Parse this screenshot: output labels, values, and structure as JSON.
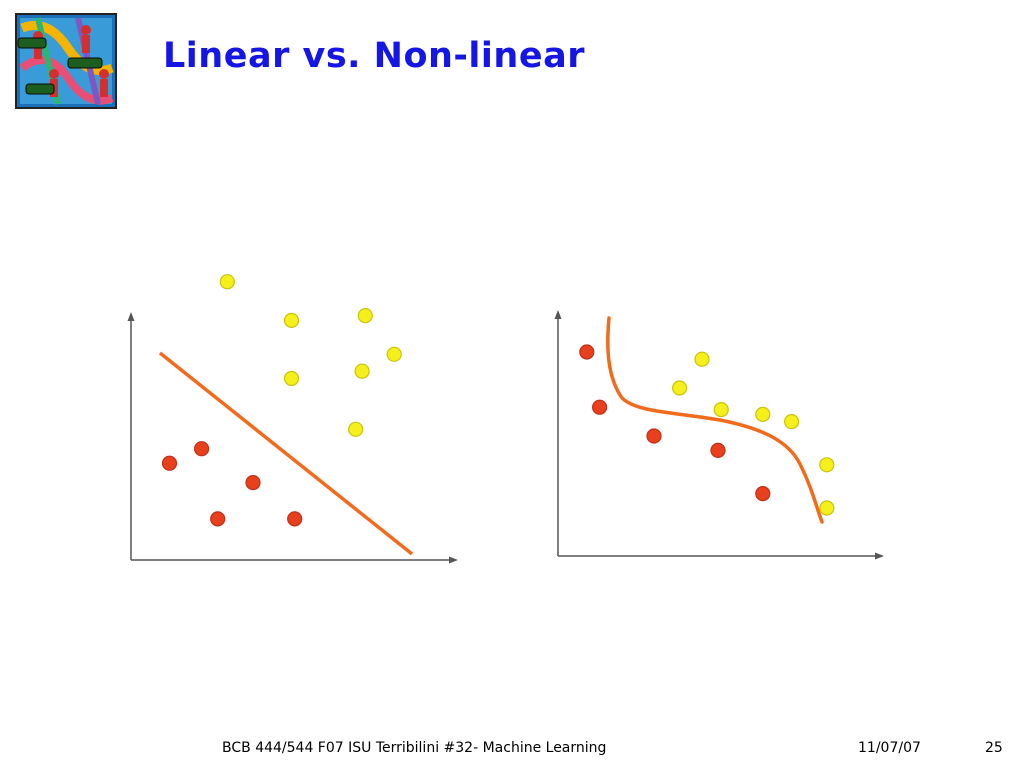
{
  "slide": {
    "title": "Linear vs. Non-linear",
    "logo_icon": "dna-people-clipart-icon",
    "footer": {
      "course": "BCB 444/544 F07 ISU Terribilini #32- Machine Learning",
      "date": "11/07/07",
      "page": "25"
    }
  },
  "colors": {
    "title": "#1515e6",
    "red_point": "#e8401c",
    "yellow_point": "#f5ef1c",
    "boundary": "#f26b1d",
    "axis": "#555555"
  },
  "chart_data": [
    {
      "type": "scatter",
      "title": "",
      "boundary": "linear",
      "series": [
        {
          "points": [
            [
              0.12,
              0.4
            ],
            [
              0.22,
              0.46
            ],
            [
              0.38,
              0.32
            ],
            [
              0.27,
              0.17
            ],
            [
              0.51,
              0.17
            ]
          ]
        },
        {
          "points": [
            [
              0.3,
              1.15
            ],
            [
              0.5,
              0.99
            ],
            [
              0.5,
              0.75
            ],
            [
              0.73,
              1.01
            ],
            [
              0.82,
              0.85
            ],
            [
              0.72,
              0.78
            ],
            [
              0.7,
              0.54
            ]
          ]
        }
      ]
    },
    {
      "type": "scatter",
      "title": "",
      "boundary": "non-linear",
      "series": [
        {
          "points": [
            [
              0.09,
              0.85
            ],
            [
              0.13,
              0.62
            ],
            [
              0.3,
              0.5
            ],
            [
              0.5,
              0.44
            ],
            [
              0.64,
              0.26
            ]
          ]
        },
        {
          "points": [
            [
              0.45,
              0.82
            ],
            [
              0.38,
              0.7
            ],
            [
              0.51,
              0.61
            ],
            [
              0.64,
              0.59
            ],
            [
              0.73,
              0.56
            ],
            [
              0.84,
              0.38
            ],
            [
              0.84,
              0.2
            ]
          ]
        }
      ]
    }
  ]
}
